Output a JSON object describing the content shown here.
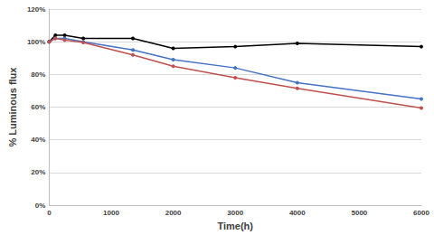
{
  "chart_data": {
    "type": "line",
    "x_label": "Time(h)",
    "y_label": "% Luminous flux",
    "x": [
      0,
      100,
      250,
      550,
      1350,
      2000,
      3000,
      4000,
      6000
    ],
    "series": [
      {
        "color": "#000000",
        "marker": "circle",
        "values": [
          100,
          104,
          104,
          102,
          102,
          96,
          97,
          99,
          97
        ]
      },
      {
        "color": "#4472c4",
        "marker": "circle",
        "values": [
          100,
          102,
          102,
          100,
          95,
          89,
          84,
          75,
          65
        ]
      },
      {
        "color": "#c0504d",
        "marker": "circle",
        "values": [
          100,
          102,
          101,
          99.5,
          92,
          85,
          78,
          71.5,
          59.5
        ]
      }
    ],
    "xlim": [
      0,
      6000
    ],
    "xticks": [
      0,
      1000,
      2000,
      3000,
      4000,
      5000,
      6000
    ],
    "ylim": [
      0,
      120
    ],
    "yticks": [
      {
        "value": 0,
        "label": "0%"
      },
      {
        "value": 20,
        "label": "20%"
      },
      {
        "value": 40,
        "label": "40%"
      },
      {
        "value": 60,
        "label": "60%"
      },
      {
        "value": 80,
        "label": "80%"
      },
      {
        "value": 100,
        "label": "100%"
      },
      {
        "value": 120,
        "label": "120%"
      }
    ],
    "grid": true
  }
}
